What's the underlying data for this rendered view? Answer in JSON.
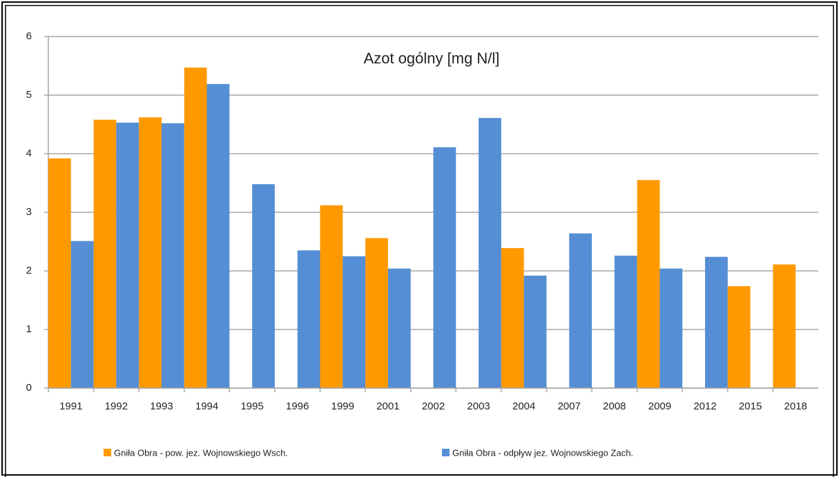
{
  "chart_data": {
    "type": "bar",
    "title": "Azot ogólny [mg N/l]",
    "categories": [
      "1991",
      "1992",
      "1993",
      "1994",
      "1995",
      "1996",
      "1999",
      "2001",
      "2002",
      "2003",
      "2004",
      "2007",
      "2008",
      "2009",
      "2012",
      "2015",
      "2018"
    ],
    "series": [
      {
        "name": "Gniła Obra - pow. jez. Wojnowskiego Wsch.",
        "color": "#ff9900",
        "values": [
          3.92,
          4.58,
          4.62,
          5.47,
          null,
          null,
          3.12,
          2.56,
          null,
          null,
          2.39,
          null,
          null,
          3.55,
          null,
          1.74,
          2.11
        ]
      },
      {
        "name": "Gniła Obra - odpływ jez. Wojnowskiego Zach.",
        "color": "#558ed5",
        "values": [
          2.51,
          4.53,
          4.52,
          5.19,
          3.48,
          2.35,
          2.25,
          2.04,
          4.11,
          4.61,
          1.92,
          2.64,
          2.26,
          2.04,
          2.24,
          null,
          null
        ]
      }
    ],
    "ylim": [
      0,
      6
    ],
    "yticks": [
      0,
      1,
      2,
      3,
      4,
      5,
      6
    ],
    "grid": true,
    "legend": "bottom"
  }
}
